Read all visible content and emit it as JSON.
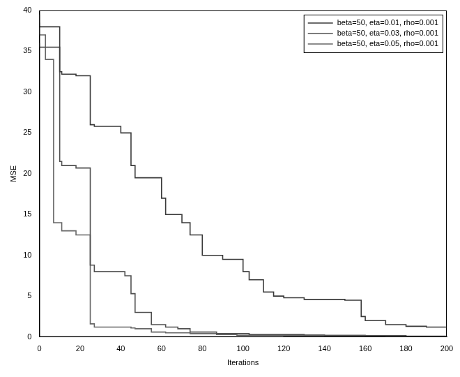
{
  "chart_data": {
    "type": "line",
    "x_label": "Iterations",
    "y_label": "MSE",
    "x": [
      0,
      3,
      7,
      10,
      11,
      18,
      25,
      27,
      40,
      42,
      45,
      47,
      55,
      60,
      62,
      68,
      70,
      74,
      80,
      87,
      90,
      97,
      100,
      103,
      110,
      115,
      120,
      130,
      140,
      150,
      158,
      160,
      170,
      180,
      190,
      200
    ],
    "series": [
      {
        "name": "beta=50, eta=0.01, rho=0.001",
        "color": "#3a3a3a",
        "line_style": "steps",
        "values": [
          38.5,
          38,
          38,
          38,
          32.5,
          32.2,
          32,
          26,
          25.8,
          25,
          25,
          21,
          19.5,
          19.5,
          17,
          15,
          15,
          14,
          12.5,
          10,
          10,
          9.5,
          9.5,
          8,
          7,
          5.5,
          5,
          4.8,
          4.6,
          4.6,
          4.5,
          2.5,
          2,
          1.5,
          1.3,
          1.2
        ]
      },
      {
        "name": "beta=50, eta=0.03, rho=0.001",
        "color": "#505050",
        "line_style": "steps",
        "values": [
          36,
          35.5,
          35.5,
          35.5,
          21.5,
          21,
          20.7,
          8.8,
          8,
          8,
          7.5,
          5.3,
          3,
          1.5,
          1.5,
          1.2,
          1,
          1,
          0.6,
          0.6,
          0.4,
          0.4,
          0.4,
          0.4,
          0.3,
          0.3,
          0.3,
          0.3,
          0.25,
          0.2,
          0.2,
          0.2,
          0.15,
          0.15,
          0.1,
          0.1
        ]
      },
      {
        "name": "beta=50, eta=0.05, rho=0.001",
        "color": "#666666",
        "line_style": "steps",
        "values": [
          39.5,
          37,
          34,
          14,
          14,
          13,
          12.5,
          1.6,
          1.2,
          1.2,
          1.2,
          1.1,
          1,
          0.6,
          0.6,
          0.5,
          0.5,
          0.5,
          0.4,
          0.4,
          0.3,
          0.3,
          0.2,
          0.2,
          0.2,
          0.2,
          0.2,
          0.15,
          0.15,
          0.1,
          0.1,
          0.1,
          0.1,
          0.05,
          0.05,
          0
        ]
      }
    ],
    "xlim": [
      0,
      200
    ],
    "xticks": [
      0,
      20,
      40,
      60,
      80,
      100,
      120,
      140,
      160,
      180,
      200
    ],
    "ylim": [
      0,
      40
    ],
    "yticks": [
      0,
      5,
      10,
      15,
      20,
      25,
      30,
      35,
      40
    ],
    "grid": false,
    "legend": "upper right"
  }
}
